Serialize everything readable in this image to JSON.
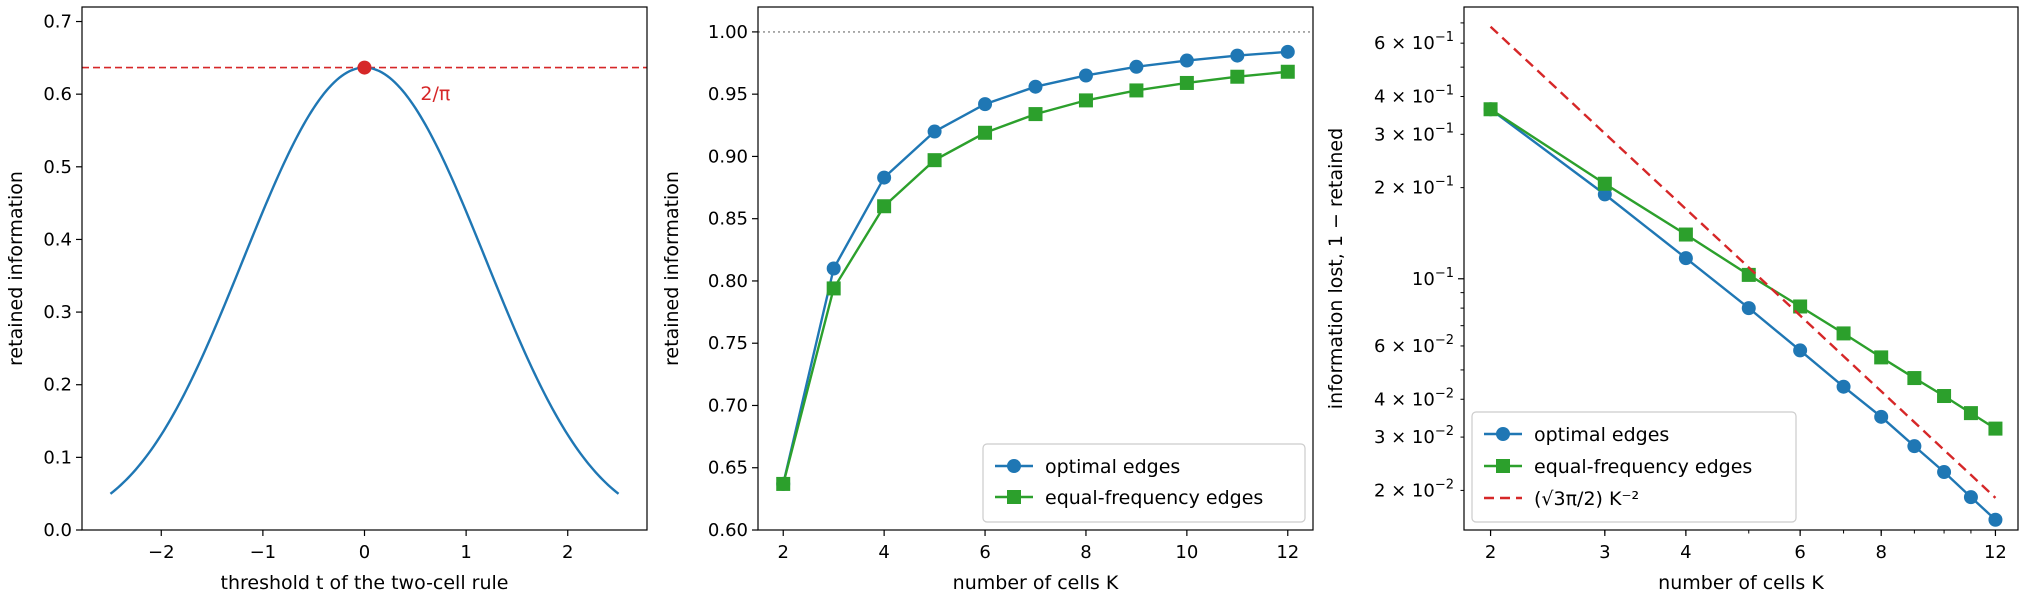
{
  "colors": {
    "blue": "#1f77b4",
    "green": "#2ca02c",
    "red": "#d62728",
    "grey": "#888888"
  },
  "chart_data": [
    {
      "type": "line",
      "xlabel": "threshold t of the two-cell rule",
      "ylabel": "retained information",
      "xlim": [
        -2.78,
        2.78
      ],
      "ylim": [
        0.0,
        0.72
      ],
      "xticks": [
        -2,
        -1,
        0,
        1,
        2
      ],
      "xtick_labels": [
        "−2",
        "−1",
        "0",
        "1",
        "2"
      ],
      "yticks": [
        0.0,
        0.1,
        0.2,
        0.3,
        0.4,
        0.5,
        0.6,
        0.7
      ],
      "ytick_labels": [
        "0.0",
        "0.1",
        "0.2",
        "0.3",
        "0.4",
        "0.5",
        "0.6",
        "0.7"
      ],
      "series": [
        {
          "x_range": [
            -2.5,
            2.5
          ],
          "description_values": "retained information vs threshold, peak 0.6366 at t=0, 0.05 at t=±2.5"
        }
      ],
      "samples": {
        "x": [
          -2.5,
          -2.0,
          -1.5,
          -1.0,
          -0.5,
          0.0,
          0.5,
          1.0,
          1.5,
          2.0,
          2.5
        ],
        "y": [
          0.049,
          0.115,
          0.232,
          0.393,
          0.553,
          0.637,
          0.553,
          0.393,
          0.232,
          0.115,
          0.049
        ]
      },
      "hline": {
        "y": 0.6366,
        "style": "dashed"
      },
      "marker": {
        "x": 0,
        "y": 0.6366
      },
      "annotation": {
        "text": "2/π",
        "x": 0.55,
        "y": 0.6
      }
    },
    {
      "type": "line",
      "xlabel": "number of cells K",
      "ylabel": "retained information",
      "xlim": [
        1.5,
        12.5
      ],
      "ylim": [
        0.6,
        1.02
      ],
      "xticks": [
        2,
        4,
        6,
        8,
        10,
        12
      ],
      "xtick_labels": [
        "2",
        "4",
        "6",
        "8",
        "10",
        "12"
      ],
      "yticks": [
        0.6,
        0.65,
        0.7,
        0.75,
        0.8,
        0.85,
        0.9,
        0.95,
        1.0
      ],
      "ytick_labels": [
        "0.60",
        "0.65",
        "0.70",
        "0.75",
        "0.80",
        "0.85",
        "0.90",
        "0.95",
        "1.00"
      ],
      "hline": {
        "y": 1.0,
        "style": "dotted"
      },
      "x": [
        2,
        3,
        4,
        5,
        6,
        7,
        8,
        9,
        10,
        11,
        12
      ],
      "series": [
        {
          "name": "optimal edges",
          "marker": "circle",
          "values": [
            0.637,
            0.81,
            0.883,
            0.92,
            0.942,
            0.956,
            0.965,
            0.972,
            0.977,
            0.981,
            0.984
          ]
        },
        {
          "name": "equal-frequency edges",
          "marker": "square",
          "values": [
            0.637,
            0.794,
            0.86,
            0.897,
            0.919,
            0.934,
            0.945,
            0.953,
            0.959,
            0.964,
            0.968
          ]
        }
      ],
      "legend_position": "lower-right"
    },
    {
      "type": "line",
      "xscale": "log",
      "yscale": "log",
      "xlabel": "number of cells K",
      "ylabel": "information lost, 1 − retained",
      "xlim": [
        1.82,
        13.0
      ],
      "ylim": [
        0.0148,
        0.79
      ],
      "xticks": [
        2,
        3,
        4,
        6,
        8,
        12
      ],
      "xtick_labels": [
        "2",
        "3",
        "4",
        "6",
        "8",
        "12"
      ],
      "ytick_labels": [
        {
          "m": "2",
          "e": "−2",
          "v": 0.02
        },
        {
          "m": "3",
          "e": "−2",
          "v": 0.03
        },
        {
          "m": "4",
          "e": "−2",
          "v": 0.04
        },
        {
          "m": "6",
          "e": "−2",
          "v": 0.06
        },
        {
          "m": "10",
          "e": "−1",
          "v": 0.1,
          "plain": true
        },
        {
          "m": "2",
          "e": "−1",
          "v": 0.2
        },
        {
          "m": "3",
          "e": "−1",
          "v": 0.3
        },
        {
          "m": "4",
          "e": "−1",
          "v": 0.4
        },
        {
          "m": "6",
          "e": "−1",
          "v": 0.6
        }
      ],
      "x": [
        2,
        3,
        4,
        5,
        6,
        7,
        8,
        9,
        10,
        11,
        12
      ],
      "series": [
        {
          "name": "optimal edges",
          "marker": "circle",
          "values": [
            0.363,
            0.19,
            0.117,
            0.08,
            0.058,
            0.044,
            0.035,
            0.028,
            0.023,
            0.019,
            0.016
          ]
        },
        {
          "name": "equal-frequency edges",
          "marker": "square",
          "values": [
            0.363,
            0.206,
            0.14,
            0.103,
            0.081,
            0.066,
            0.055,
            0.047,
            0.041,
            0.036,
            0.032
          ]
        },
        {
          "name": "(√3π/2) K⁻²",
          "style": "dashed",
          "values": [
            0.68,
            0.302,
            0.17,
            0.109,
            0.0756,
            0.0555,
            0.0425,
            0.0336,
            0.0272,
            0.0225,
            0.0189
          ]
        }
      ],
      "legend_position": "lower-left"
    }
  ]
}
